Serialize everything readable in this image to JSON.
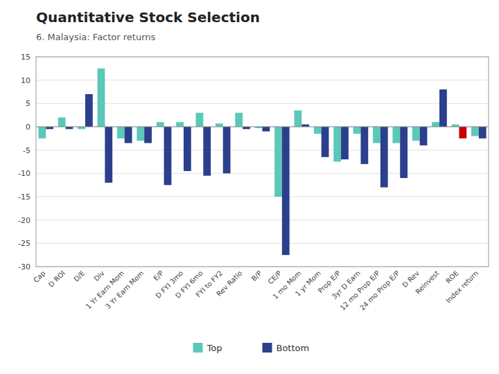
{
  "chart_data": {
    "type": "bar",
    "title": "Quantitative Stock Selection",
    "subtitle": "6. Malaysia:  Factor returns",
    "categories": [
      "Cap",
      "D ROI",
      "D/E",
      "Div",
      "1 Yr Earn Mom",
      "3 Yr Earn Mom",
      "E/P",
      "D FYI 3mo",
      "D FYI 6mo",
      "FYI to FY2",
      "Rev Ratio",
      "B/P",
      "CE/P",
      "1 mo Mom",
      "1 yr Mom",
      "Prop E/P",
      "3yr D Earn",
      "12 mo Prop E/P",
      "24 mo Prop E/P",
      "D Rev",
      "Reinvest",
      "ROE",
      "Index return"
    ],
    "series": [
      {
        "name": "Top",
        "color": "#5BC8B8",
        "values": [
          -2.5,
          2.0,
          -0.5,
          12.5,
          -2.5,
          -3.0,
          1.0,
          1.0,
          3.0,
          0.7,
          3.0,
          -0.3,
          -15.0,
          3.5,
          -1.5,
          -7.5,
          -1.5,
          -3.5,
          -3.5,
          -3.0,
          1.0,
          0.5,
          -2.0
        ]
      },
      {
        "name": "Bottom",
        "color": "#2B3F8C",
        "colors": [
          "#2B3F8C",
          "#2B3F8C",
          "#2B3F8C",
          "#2B3F8C",
          "#2B3F8C",
          "#2B3F8C",
          "#2B3F8C",
          "#2B3F8C",
          "#2B3F8C",
          "#2B3F8C",
          "#2B3F8C",
          "#2B3F8C",
          "#2B3F8C",
          "#2B3F8C",
          "#2B3F8C",
          "#2B3F8C",
          "#2B3F8C",
          "#2B3F8C",
          "#2B3F8C",
          "#2B3F8C",
          "#2B3F8C",
          "#CC0000",
          "#2B3F8C"
        ],
        "values": [
          -0.5,
          -0.5,
          7.0,
          -12.0,
          -3.5,
          -3.5,
          -12.5,
          -9.5,
          -10.5,
          -10.0,
          -0.5,
          -1.0,
          -27.5,
          0.5,
          -6.5,
          -7.0,
          -8.0,
          -13.0,
          -11.0,
          -4.0,
          8.0,
          -2.5,
          -2.5
        ]
      }
    ],
    "ylim": [
      -30,
      15
    ],
    "yticks": [
      -30,
      -25,
      -20,
      -15,
      -10,
      -5,
      0,
      5,
      10,
      15
    ],
    "grid": true,
    "legend": "bottom"
  }
}
